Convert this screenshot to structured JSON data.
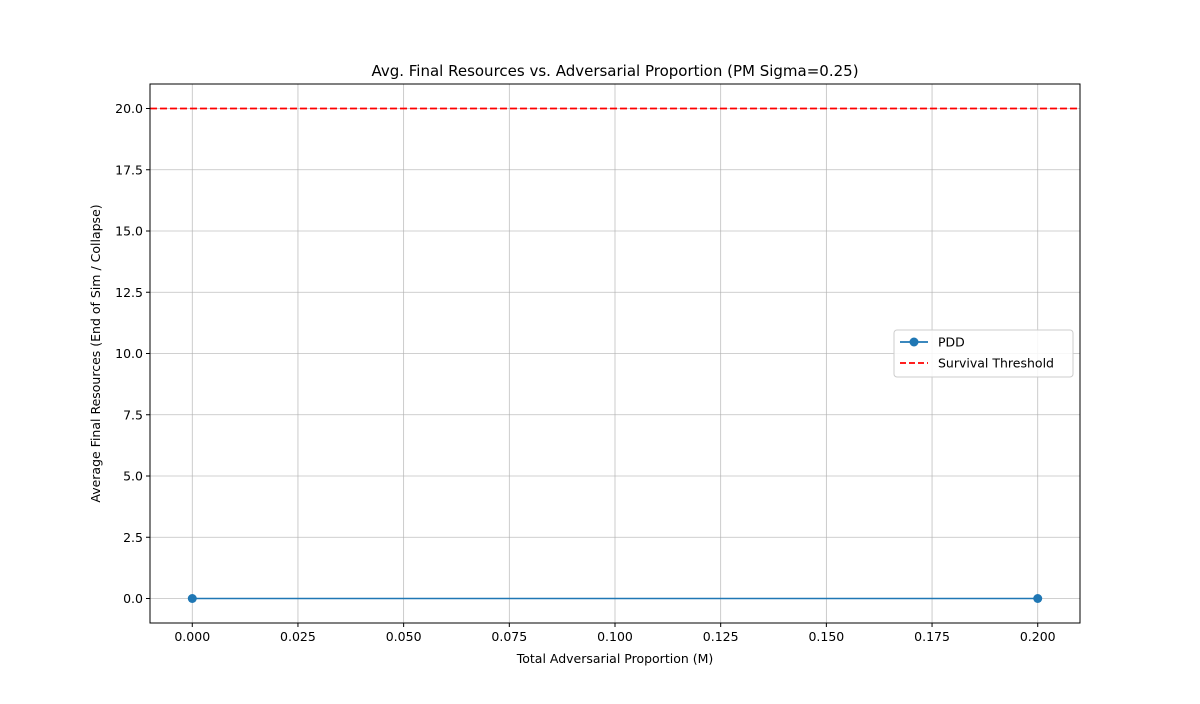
{
  "chart_data": {
    "type": "line",
    "title": "Avg. Final Resources vs. Adversarial Proportion (PM Sigma=0.25)",
    "xlabel": "Total Adversarial Proportion (M)",
    "ylabel": "Average Final Resources (End of Sim / Collapse)",
    "xlim": [
      -0.01,
      0.21
    ],
    "ylim": [
      -1.0,
      21.0
    ],
    "xticks": [
      0.0,
      0.025,
      0.05,
      0.075,
      0.1,
      0.125,
      0.15,
      0.175,
      0.2
    ],
    "xtick_labels": [
      "0.000",
      "0.025",
      "0.050",
      "0.075",
      "0.100",
      "0.125",
      "0.150",
      "0.175",
      "0.200"
    ],
    "yticks": [
      0.0,
      2.5,
      5.0,
      7.5,
      10.0,
      12.5,
      15.0,
      17.5,
      20.0
    ],
    "ytick_labels": [
      "0.0",
      "2.5",
      "5.0",
      "7.5",
      "10.0",
      "12.5",
      "15.0",
      "17.5",
      "20.0"
    ],
    "grid": true,
    "legend_position": "center-right",
    "series": [
      {
        "name": "PDD",
        "x": [
          0.0,
          0.2
        ],
        "y": [
          0.0,
          0.0
        ],
        "color": "#1f77b4",
        "marker": "circle",
        "line_style": "solid"
      }
    ],
    "reference_lines": [
      {
        "name": "Survival Threshold",
        "orientation": "horizontal",
        "y": 20.0,
        "color": "#ff0000",
        "line_style": "dashed"
      }
    ]
  }
}
